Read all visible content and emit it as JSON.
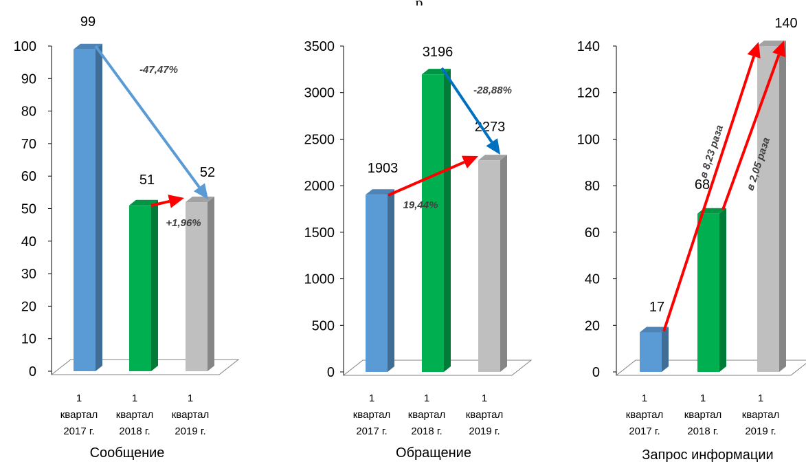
{
  "page": {
    "header_fragment": "р"
  },
  "chart_data": [
    {
      "type": "bar",
      "title": "Сообщение",
      "categories": [
        "1 квартал 2017 г.",
        "1 квартал 2018 г.",
        "1 квартал 2019 г."
      ],
      "category_lines": [
        [
          "1",
          "квартал",
          "2017 г."
        ],
        [
          "1",
          "квартал",
          "2018 г."
        ],
        [
          "1",
          "квартал",
          "2019 г."
        ]
      ],
      "values": [
        99,
        51,
        52
      ],
      "colors": [
        "#5b9bd5",
        "#00b050",
        "#bfbfbf"
      ],
      "ylim": [
        0,
        100
      ],
      "yticks": [
        0,
        10,
        20,
        30,
        40,
        50,
        60,
        70,
        80,
        90,
        100
      ],
      "annotations": [
        {
          "text": "-47,47%",
          "from_bar": 0,
          "to_bar": 2,
          "arrow_color": "#5b9bd5",
          "rotated": false
        },
        {
          "text": "+1,96%",
          "from_bar": 1,
          "to_bar": 2,
          "arrow_color": "#ff0000",
          "rotated": false
        }
      ]
    },
    {
      "type": "bar",
      "title": "Обращение",
      "categories": [
        "1 квартал 2017 г.",
        "1 квартал 2018 г.",
        "1 квартал 2019 г."
      ],
      "category_lines": [
        [
          "1",
          "квартал",
          "2017 г."
        ],
        [
          "1",
          "квартал",
          "2018 г."
        ],
        [
          "1",
          "квартал",
          "2019 г."
        ]
      ],
      "values": [
        1903,
        3196,
        2273
      ],
      "colors": [
        "#5b9bd5",
        "#00b050",
        "#bfbfbf"
      ],
      "ylim": [
        0,
        3500
      ],
      "yticks": [
        0,
        500,
        1000,
        1500,
        2000,
        2500,
        3000,
        3500
      ],
      "annotations": [
        {
          "text": "-28,88%",
          "from_bar": 1,
          "to_bar": 2,
          "arrow_color": "#0070c0",
          "rotated": false
        },
        {
          "text": "19,44%",
          "from_bar": 0,
          "to_bar": 2,
          "arrow_color": "#ff0000",
          "rotated": false
        }
      ]
    },
    {
      "type": "bar",
      "title": "Запрос информации",
      "categories": [
        "1 квартал 2017 г.",
        "1 квартал 2018 г.",
        "1 квартал 2019 г."
      ],
      "category_lines": [
        [
          "1",
          "квартал",
          "2017 г."
        ],
        [
          "1",
          "квартал",
          "2018 г."
        ],
        [
          "1",
          "квартал",
          "2019 г."
        ]
      ],
      "values": [
        17,
        68,
        140
      ],
      "colors": [
        "#5b9bd5",
        "#00b050",
        "#bfbfbf"
      ],
      "ylim": [
        0,
        140
      ],
      "yticks": [
        0,
        20,
        40,
        60,
        80,
        100,
        120,
        140
      ],
      "annotations": [
        {
          "text": "в 8,23 раза",
          "from_bar": 0,
          "to_bar": 2,
          "arrow_color": "#ff0000",
          "rotated": true
        },
        {
          "text": "в 2,05 раза",
          "from_bar": 1,
          "to_bar": 2,
          "arrow_color": "#ff0000",
          "rotated": true
        }
      ]
    }
  ]
}
